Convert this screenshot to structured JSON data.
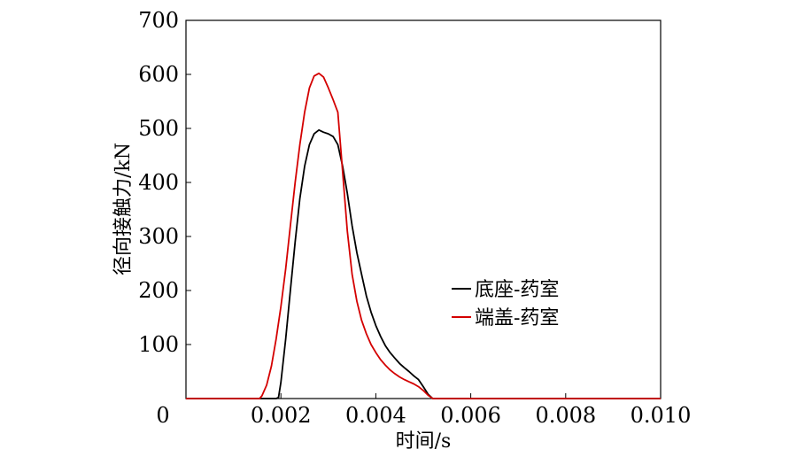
{
  "chart_data": {
    "type": "line",
    "title": "",
    "xlabel": "时间/s",
    "ylabel": "径向接触力/kN",
    "xlim": [
      0,
      0.01
    ],
    "ylim": [
      0,
      700
    ],
    "x_ticks": [
      0,
      0.002,
      0.004,
      0.006,
      0.008,
      0.01
    ],
    "x_tick_labels": [
      "0",
      "0.002",
      "0.004",
      "0.006",
      "0.008",
      "0.010"
    ],
    "y_ticks": [
      100,
      200,
      300,
      400,
      500,
      600,
      700
    ],
    "y_tick_labels": [
      "100",
      "200",
      "300",
      "400",
      "500",
      "600",
      "700"
    ],
    "grid": false,
    "legend_position": "right",
    "series": [
      {
        "name": "底座-药室",
        "color": "#000000",
        "points": [
          [
            0,
            0
          ],
          [
            0.0019,
            0
          ],
          [
            0.00195,
            2
          ],
          [
            0.002,
            30
          ],
          [
            0.0021,
            110
          ],
          [
            0.0022,
            200
          ],
          [
            0.0023,
            290
          ],
          [
            0.0024,
            370
          ],
          [
            0.0025,
            430
          ],
          [
            0.0026,
            470
          ],
          [
            0.0027,
            490
          ],
          [
            0.0028,
            497
          ],
          [
            0.0029,
            493
          ],
          [
            0.003,
            490
          ],
          [
            0.0031,
            485
          ],
          [
            0.0032,
            470
          ],
          [
            0.0033,
            430
          ],
          [
            0.0034,
            380
          ],
          [
            0.0035,
            320
          ],
          [
            0.0036,
            270
          ],
          [
            0.0037,
            230
          ],
          [
            0.0038,
            190
          ],
          [
            0.0039,
            160
          ],
          [
            0.004,
            135
          ],
          [
            0.0041,
            115
          ],
          [
            0.0042,
            98
          ],
          [
            0.0043,
            85
          ],
          [
            0.0044,
            75
          ],
          [
            0.0045,
            65
          ],
          [
            0.0046,
            57
          ],
          [
            0.0047,
            50
          ],
          [
            0.0048,
            42
          ],
          [
            0.0049,
            35
          ],
          [
            0.005,
            22
          ],
          [
            0.0051,
            8
          ],
          [
            0.0052,
            0
          ],
          [
            0.01,
            0
          ]
        ]
      },
      {
        "name": "端盖-药室",
        "color": "#d40000",
        "points": [
          [
            0,
            0
          ],
          [
            0.00155,
            0
          ],
          [
            0.0016,
            5
          ],
          [
            0.0017,
            25
          ],
          [
            0.0018,
            60
          ],
          [
            0.0019,
            110
          ],
          [
            0.002,
            170
          ],
          [
            0.0021,
            240
          ],
          [
            0.0022,
            320
          ],
          [
            0.0023,
            400
          ],
          [
            0.0024,
            470
          ],
          [
            0.0025,
            530
          ],
          [
            0.0026,
            575
          ],
          [
            0.0027,
            597
          ],
          [
            0.0028,
            602
          ],
          [
            0.0029,
            595
          ],
          [
            0.003,
            575
          ],
          [
            0.0031,
            553
          ],
          [
            0.0032,
            530
          ],
          [
            0.0033,
            420
          ],
          [
            0.0034,
            310
          ],
          [
            0.0035,
            230
          ],
          [
            0.0036,
            180
          ],
          [
            0.0037,
            145
          ],
          [
            0.0038,
            120
          ],
          [
            0.0039,
            100
          ],
          [
            0.004,
            85
          ],
          [
            0.0041,
            72
          ],
          [
            0.0042,
            62
          ],
          [
            0.0043,
            53
          ],
          [
            0.0044,
            46
          ],
          [
            0.0045,
            40
          ],
          [
            0.0046,
            35
          ],
          [
            0.0047,
            31
          ],
          [
            0.0048,
            27
          ],
          [
            0.0049,
            22
          ],
          [
            0.005,
            15
          ],
          [
            0.0051,
            6
          ],
          [
            0.0052,
            0
          ],
          [
            0.01,
            0
          ]
        ]
      }
    ]
  }
}
